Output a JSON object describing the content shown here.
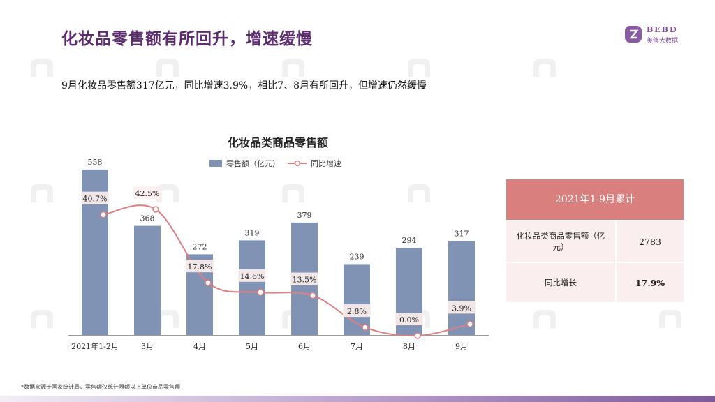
{
  "header": {
    "title": "化妆品零售额有所回升，增速缓慢",
    "subtitle": "9月化妆品零售额317亿元，同比增速3.9%，相比7、8月有所回升，但增速仍然缓慢"
  },
  "logo": {
    "text": "BEBD",
    "subtext": "美修大数据"
  },
  "colors": {
    "bar": "#8193b4",
    "line": "#e07f7f",
    "title": "#5b2d6e",
    "table_head": "#d9807f",
    "table_body": "#fbeeee"
  },
  "chart_data": {
    "type": "bar",
    "title": "化妆品类商品零售额",
    "categories": [
      "2021年1-2月",
      "3月",
      "4月",
      "5月",
      "6月",
      "7月",
      "8月",
      "9月"
    ],
    "series": [
      {
        "name": "零售额（亿元）",
        "type": "bar",
        "values": [
          558,
          368,
          272,
          319,
          379,
          239,
          294,
          317
        ]
      },
      {
        "name": "同比增速",
        "type": "line",
        "values": [
          40.7,
          42.5,
          17.8,
          14.6,
          13.5,
          2.8,
          0.0,
          3.9
        ],
        "labels": [
          "40.7%",
          "42.5%",
          "17.8%",
          "14.6%",
          "13.5%",
          "2.8%",
          "0.0%",
          "3.9%"
        ]
      }
    ],
    "legend": "top",
    "grid": false
  },
  "summary": {
    "header": "2021年1-9月累计",
    "rows": [
      {
        "label": "化妆品类商品零售额（亿元）",
        "value": "2783"
      },
      {
        "label": "同比增长",
        "value": "17.9%"
      }
    ]
  },
  "footnote": "*数据来源于国家统计局，零售额仅统计限额以上单位商品零售额"
}
